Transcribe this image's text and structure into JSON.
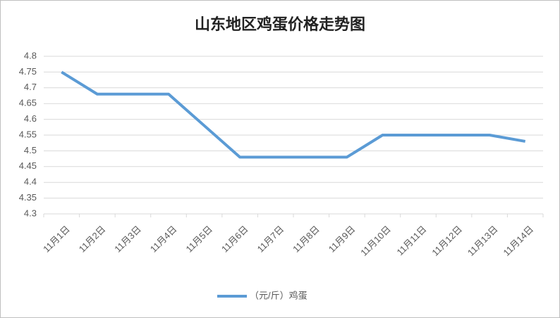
{
  "chart_data": {
    "type": "line",
    "title": "山东地区鸡蛋价格走势图",
    "categories": [
      "11月1日",
      "11月2日",
      "11月3日",
      "11月4日",
      "11月5日",
      "11月6日",
      "11月7日",
      "11月8日",
      "11月9日",
      "11月10日",
      "11月11日",
      "11月12日",
      "11月13日",
      "11月14日"
    ],
    "series": [
      {
        "name": "（元/斤）鸡蛋",
        "color": "#5b9bd5",
        "values": [
          4.75,
          4.68,
          4.68,
          4.68,
          4.58,
          4.48,
          4.48,
          4.48,
          4.48,
          4.55,
          4.55,
          4.55,
          4.55,
          4.53
        ]
      }
    ],
    "ylim": [
      4.3,
      4.8
    ],
    "yticks": [
      4.3,
      4.35,
      4.4,
      4.45,
      4.5,
      4.55,
      4.6,
      4.65,
      4.7,
      4.75,
      4.8
    ],
    "grid": true,
    "legend": "bottom"
  }
}
